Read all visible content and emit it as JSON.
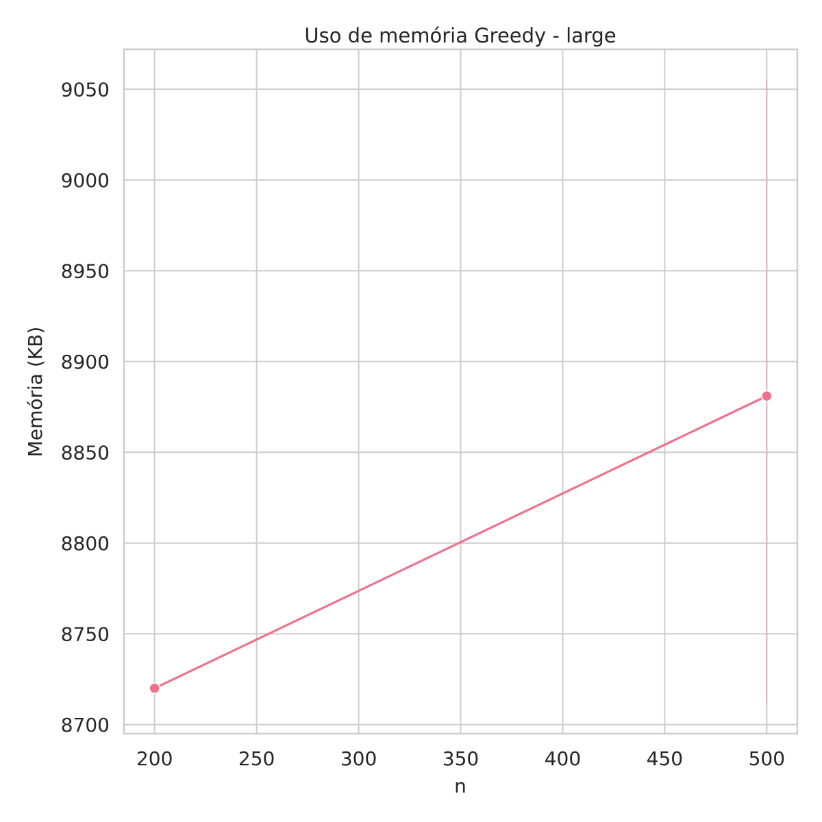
{
  "chart_data": {
    "type": "line",
    "title": "Uso de memória Greedy - large",
    "xlabel": "n",
    "ylabel": "Memória (KB)",
    "xlim": [
      185,
      515
    ],
    "ylim": [
      8695,
      9072
    ],
    "x_ticks": [
      200,
      250,
      300,
      350,
      400,
      450,
      500
    ],
    "y_ticks": [
      8700,
      8750,
      8800,
      8850,
      8900,
      8950,
      9000,
      9050
    ],
    "grid": true,
    "series": [
      {
        "x": [
          200,
          500
        ],
        "y": [
          8720,
          8881
        ],
        "color": "#f0718b",
        "marker": "circle",
        "error_band": [
          {
            "x": 500,
            "low": 8712,
            "high": 9055
          }
        ]
      }
    ]
  }
}
